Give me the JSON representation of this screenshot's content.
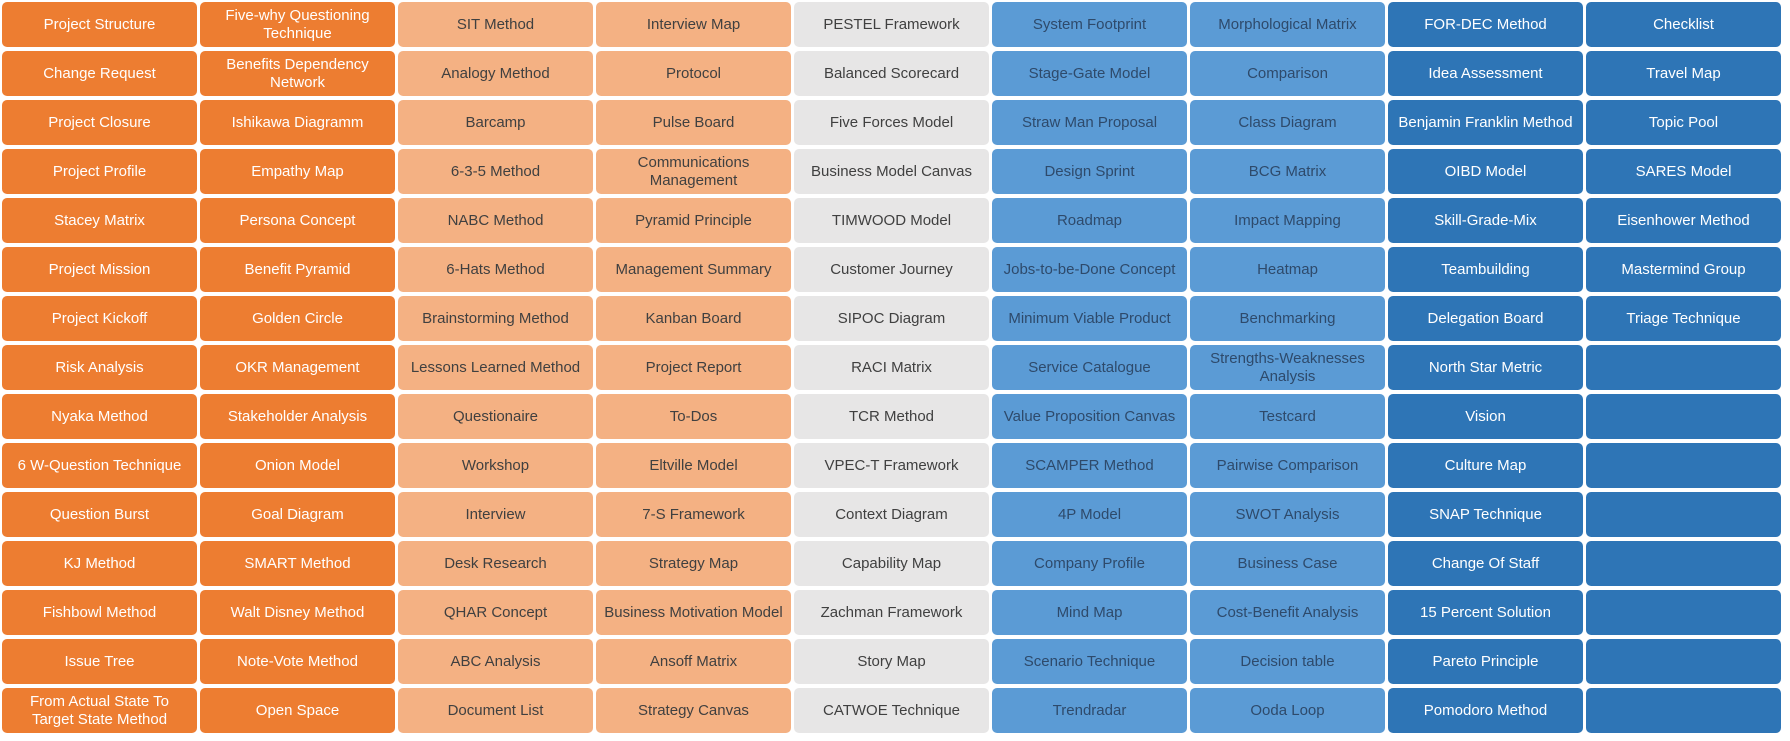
{
  "columns": [
    [
      "Project Structure",
      "Change Request",
      "Project Closure",
      "Project Profile",
      "Stacey Matrix",
      "Project Mission",
      "Project Kickoff",
      "Risk Analysis",
      "Nyaka Method",
      "6 W-Question Technique",
      "Question Burst",
      "KJ Method",
      "Fishbowl Method",
      "Issue Tree",
      "From Actual State To Target State Method"
    ],
    [
      "Five-why Questioning Technique",
      "Benefits Dependency Network",
      "Ishikawa Diagramm",
      "Empathy Map",
      "Persona Concept",
      "Benefit Pyramid",
      "Golden Circle",
      "OKR Management",
      "Stakeholder Analysis",
      "Onion Model",
      "Goal Diagram",
      "SMART Method",
      "Walt Disney Method",
      "Note-Vote Method",
      "Open Space"
    ],
    [
      "SIT Method",
      "Analogy Method",
      "Barcamp",
      "6-3-5 Method",
      "NABC Method",
      "6-Hats Method",
      "Brainstorming Method",
      "Lessons Learned Method",
      "Questionaire",
      "Workshop",
      "Interview",
      "Desk Research",
      "QHAR Concept",
      "ABC Analysis",
      "Document List"
    ],
    [
      "Interview Map",
      "Protocol",
      "Pulse Board",
      "Communications Management",
      "Pyramid Principle",
      "Management Summary",
      "Kanban Board",
      "Project Report",
      "To-Dos",
      "Eltville Model",
      "7-S Framework",
      "Strategy Map",
      "Business Motivation Model",
      "Ansoff Matrix",
      "Strategy Canvas"
    ],
    [
      "PESTEL Framework",
      "Balanced Scorecard",
      "Five Forces Model",
      "Business Model Canvas",
      "TIMWOOD Model",
      "Customer Journey",
      "SIPOC Diagram",
      "RACI Matrix",
      "TCR Method",
      "VPEC-T Framework",
      "Context Diagram",
      "Capability Map",
      "Zachman Framework",
      "Story Map",
      "CATWOE Technique"
    ],
    [
      "System Footprint",
      "Stage-Gate Model",
      "Straw Man Proposal",
      "Design Sprint",
      "Roadmap",
      "Jobs-to-be-Done Concept",
      "Minimum Viable Product",
      "Service Catalogue",
      "Value Proposition Canvas",
      "SCAMPER Method",
      "4P Model",
      "Company Profile",
      "Mind Map",
      "Scenario Technique",
      "Trendradar"
    ],
    [
      "Morphological Matrix",
      "Comparison",
      "Class Diagram",
      "BCG Matrix",
      "Impact Mapping",
      "Heatmap",
      "Benchmarking",
      "Strengths-Weaknesses Analysis",
      "Testcard",
      "Pairwise Comparison",
      "SWOT Analysis",
      "Business Case",
      "Cost-Benefit Analysis",
      "Decision table",
      "Ooda Loop"
    ],
    [
      "FOR-DEC Method",
      "Idea Assessment",
      "Benjamin Franklin Method",
      "OIBD Model",
      "Skill-Grade-Mix",
      "Teambuilding",
      "Delegation Board",
      "North Star Metric",
      "Vision",
      "Culture Map",
      "SNAP Technique",
      "Change Of Staff",
      "15 Percent Solution",
      "Pareto Principle",
      "Pomodoro Method"
    ],
    [
      "Checklist",
      "Travel Map",
      "Topic Pool",
      "SARES Model",
      "Eisenhower Method",
      "Mastermind Group",
      "Triage Technique",
      "",
      "",
      "",
      "",
      "",
      "",
      "",
      ""
    ]
  ],
  "colors": {
    "orange_dark": "#ED7D31",
    "orange_light": "#F4B183",
    "gray": "#E7E6E6",
    "blue_medium": "#5B9BD5",
    "blue_dark": "#2E75B6"
  }
}
